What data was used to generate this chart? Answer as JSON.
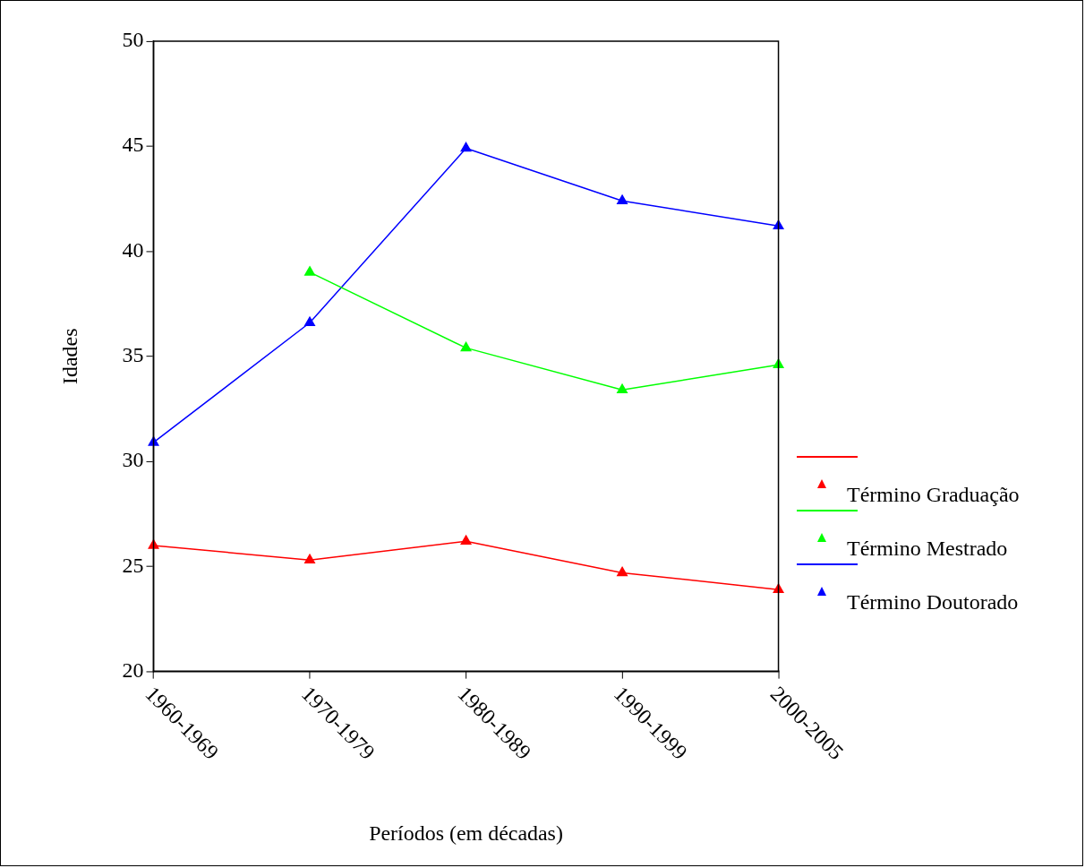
{
  "chart_data": {
    "type": "line",
    "xlabel": "Períodos (em décadas)",
    "ylabel": "Idades",
    "categories": [
      "1960-1969",
      "1970-1979",
      "1980-1989",
      "1990-1999",
      "2000-2005"
    ],
    "series": [
      {
        "name": "Término Graduação",
        "color": "#ff0000",
        "values": [
          26.0,
          25.3,
          26.2,
          24.7,
          23.9
        ]
      },
      {
        "name": "Término Mestrado",
        "color": "#00ff00",
        "values": [
          null,
          39.0,
          35.4,
          33.4,
          34.6
        ]
      },
      {
        "name": "Término Doutorado",
        "color": "#0000ff",
        "values": [
          30.9,
          36.6,
          44.9,
          42.4,
          41.2
        ]
      }
    ],
    "ylim": [
      20,
      50
    ],
    "yticks": [
      20,
      25,
      30,
      35,
      40,
      45,
      50
    ],
    "grid": false,
    "legend": "right",
    "marker": "triangle",
    "line_style": "solid"
  }
}
